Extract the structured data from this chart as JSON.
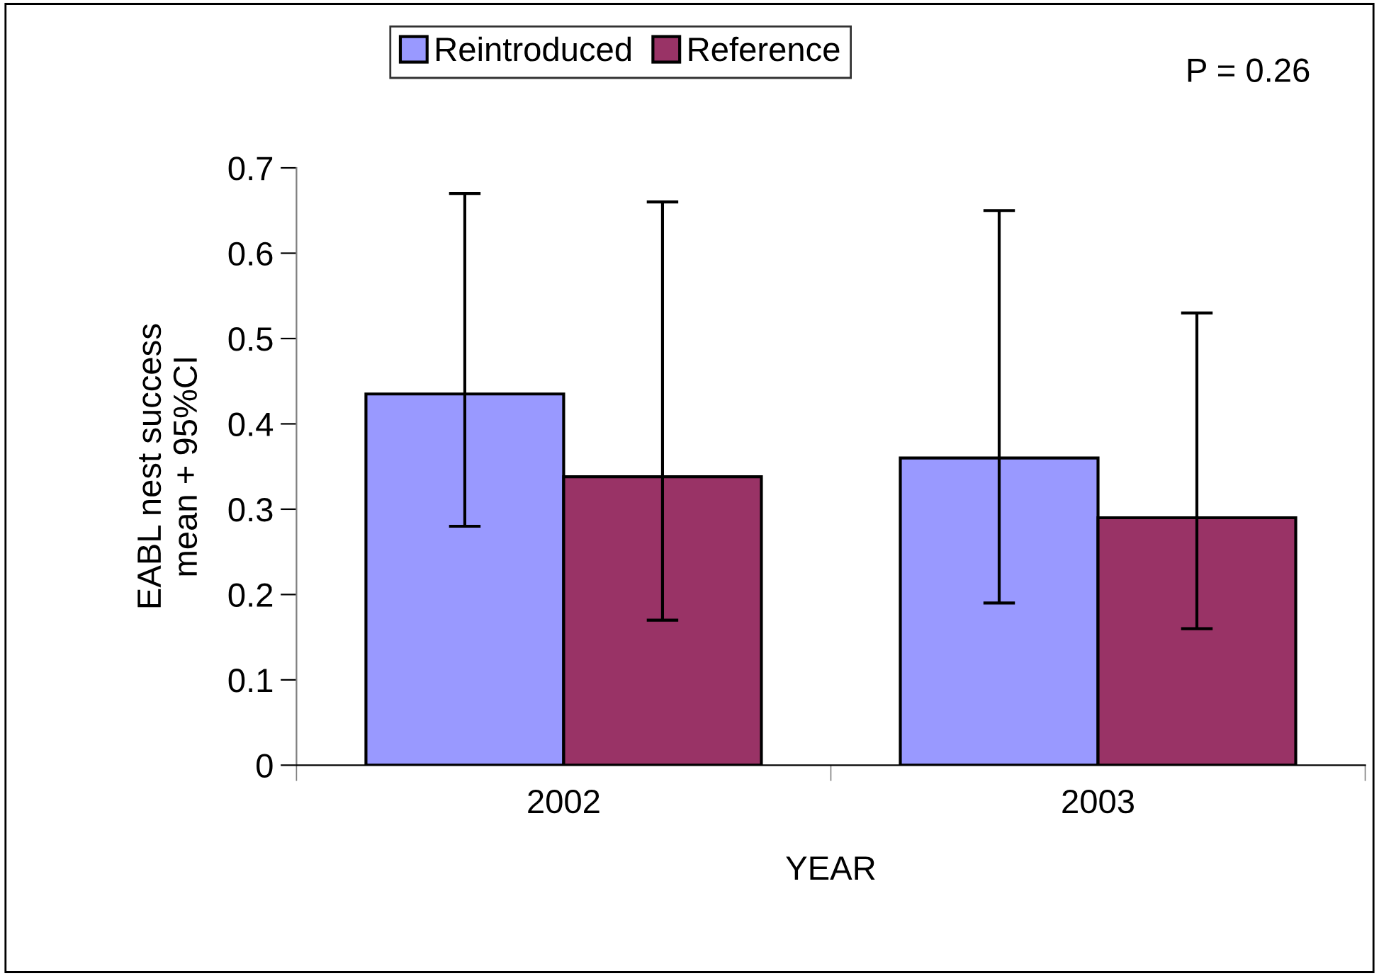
{
  "chart_data": {
    "type": "bar",
    "xlabel": "YEAR",
    "ylabel": "EABL nest success\nmean + 95%CI",
    "categories": [
      "2002",
      "2003"
    ],
    "series": [
      {
        "name": "Reintroduced",
        "color": "#9999ff",
        "values": [
          0.435,
          0.36
        ],
        "errors": [
          [
            0.28,
            0.67
          ],
          [
            0.19,
            0.65
          ]
        ]
      },
      {
        "name": "Reference",
        "color": "#993366",
        "values": [
          0.338,
          0.29
        ],
        "errors": [
          [
            0.17,
            0.66
          ],
          [
            0.16,
            0.53
          ]
        ]
      }
    ],
    "ylim": [
      0,
      0.7
    ],
    "yticks": [
      0,
      0.1,
      0.2,
      0.3,
      0.4,
      0.5,
      0.6,
      0.7
    ],
    "annotations": [
      "P = 0.26"
    ],
    "legend": "top",
    "grid": false
  }
}
